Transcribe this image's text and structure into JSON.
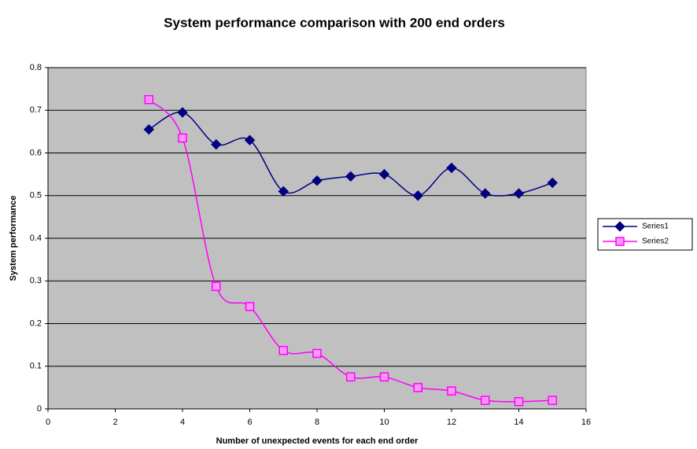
{
  "chart_data": {
    "type": "line",
    "title": "System performance comparison with 200 end orders",
    "x_label": "Number of unexpected events for each end order",
    "y_label": "System performance",
    "x": [
      3,
      4,
      5,
      6,
      7,
      8,
      9,
      10,
      11,
      12,
      13,
      14,
      15
    ],
    "series": [
      {
        "name": "Series1",
        "color": "#000080",
        "marker": "diamond",
        "values": [
          0.655,
          0.695,
          0.62,
          0.63,
          0.51,
          0.535,
          0.545,
          0.55,
          0.5,
          0.565,
          0.505,
          0.505,
          0.53
        ]
      },
      {
        "name": "Series2",
        "color": "#ff00ff",
        "marker": "square",
        "values": [
          0.725,
          0.635,
          0.287,
          0.24,
          0.137,
          0.13,
          0.075,
          0.075,
          0.05,
          0.042,
          0.02,
          0.017,
          0.02
        ]
      }
    ],
    "xlim": [
      0,
      16
    ],
    "xticks": [
      0,
      2,
      4,
      6,
      8,
      10,
      12,
      14,
      16
    ],
    "ylim": [
      0,
      0.8
    ],
    "yticks": [
      0,
      0.1,
      0.2,
      0.3,
      0.4,
      0.5,
      0.6,
      0.7,
      0.8
    ],
    "grid": true,
    "smooth": true,
    "legend": "right"
  }
}
